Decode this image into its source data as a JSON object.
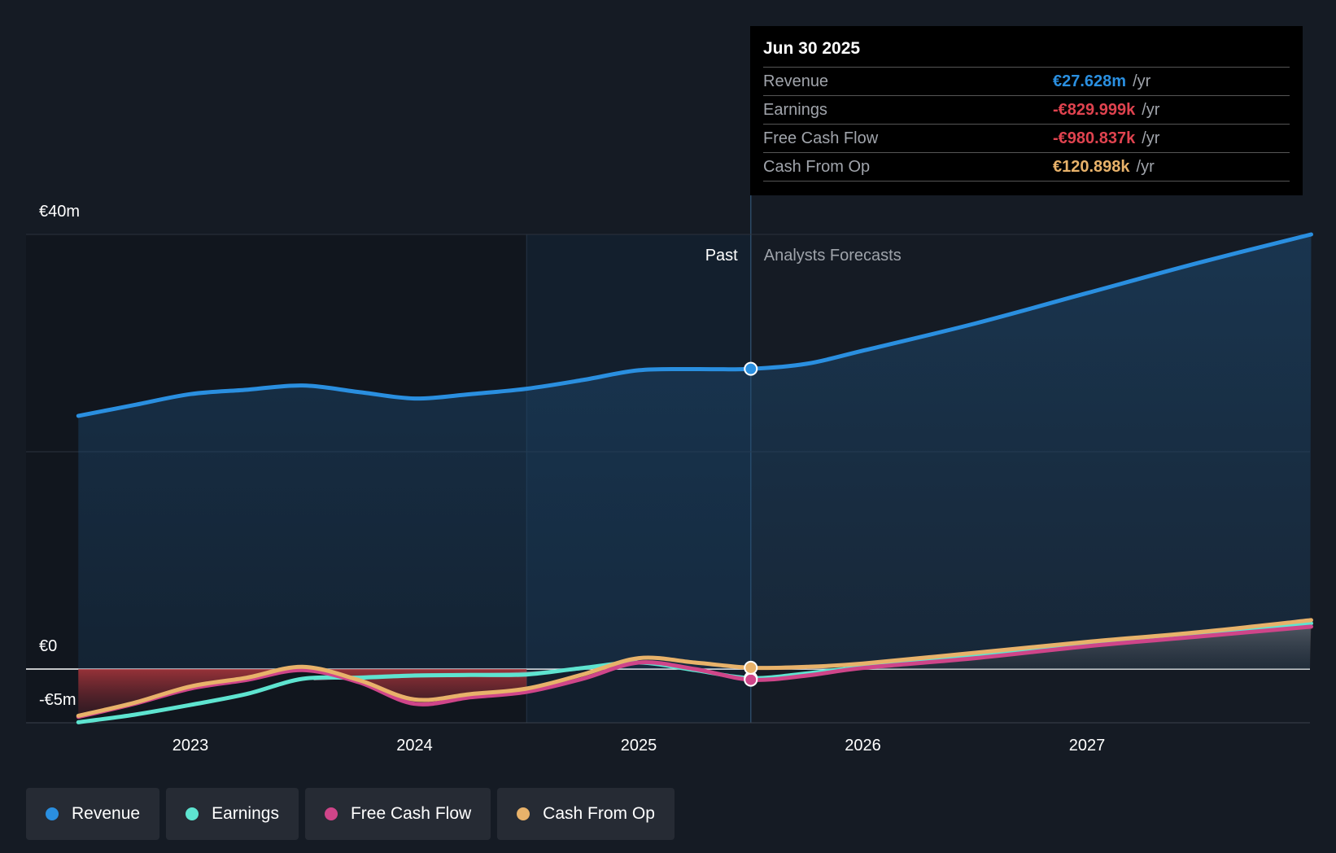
{
  "chart_data": {
    "type": "area",
    "y_unit": "€m",
    "ylim": [
      -5,
      40
    ],
    "xlim": [
      2022.5,
      2028.0
    ],
    "y_ticks": [
      {
        "value": 40,
        "label": "€40m"
      },
      {
        "value": 0,
        "label": "€0"
      },
      {
        "value": -5,
        "label": "-€5m"
      }
    ],
    "x_ticks": [
      {
        "value": 2023,
        "label": "2023"
      },
      {
        "value": 2024,
        "label": "2024"
      },
      {
        "value": 2025,
        "label": "2025"
      },
      {
        "value": 2026,
        "label": "2026"
      },
      {
        "value": 2027,
        "label": "2027"
      }
    ],
    "past_label": "Past",
    "forecast_label": "Analysts Forecasts",
    "highlight_start": 2024.5,
    "divider_x": 2025.5,
    "series": [
      {
        "name": "Revenue",
        "color": "#2a8fe0",
        "points": [
          [
            2022.5,
            23.3
          ],
          [
            2022.75,
            24.3
          ],
          [
            2023.0,
            25.3
          ],
          [
            2023.25,
            25.7
          ],
          [
            2023.5,
            26.1
          ],
          [
            2023.75,
            25.5
          ],
          [
            2024.0,
            24.9
          ],
          [
            2024.25,
            25.3
          ],
          [
            2024.5,
            25.8
          ],
          [
            2024.75,
            26.6
          ],
          [
            2025.0,
            27.5
          ],
          [
            2025.25,
            27.6
          ],
          [
            2025.5,
            27.628
          ],
          [
            2025.75,
            28.1
          ],
          [
            2026.0,
            29.3
          ],
          [
            2026.5,
            31.8
          ],
          [
            2027.0,
            34.6
          ],
          [
            2027.5,
            37.4
          ],
          [
            2028.0,
            40.0
          ]
        ]
      },
      {
        "name": "Earnings",
        "color": "#5ee4d0",
        "points": [
          [
            2022.5,
            -4.9
          ],
          [
            2022.75,
            -4.2
          ],
          [
            2023.0,
            -3.3
          ],
          [
            2023.25,
            -2.3
          ],
          [
            2023.5,
            -0.9
          ],
          [
            2023.75,
            -0.8
          ],
          [
            2024.0,
            -0.6
          ],
          [
            2024.25,
            -0.55
          ],
          [
            2024.5,
            -0.5
          ],
          [
            2024.75,
            0.1
          ],
          [
            2025.0,
            0.6
          ],
          [
            2025.25,
            -0.1
          ],
          [
            2025.5,
            -0.83
          ],
          [
            2025.75,
            -0.4
          ],
          [
            2026.0,
            0.2
          ],
          [
            2026.5,
            1.3
          ],
          [
            2027.0,
            2.4
          ],
          [
            2027.5,
            3.3
          ],
          [
            2028.0,
            4.2
          ]
        ]
      },
      {
        "name": "Free Cash Flow",
        "color": "#cf4589",
        "points": [
          [
            2022.5,
            -4.4
          ],
          [
            2022.75,
            -3.2
          ],
          [
            2023.0,
            -1.8
          ],
          [
            2023.25,
            -1.0
          ],
          [
            2023.5,
            -0.1
          ],
          [
            2023.75,
            -1.2
          ],
          [
            2024.0,
            -3.2
          ],
          [
            2024.25,
            -2.6
          ],
          [
            2024.5,
            -2.1
          ],
          [
            2024.75,
            -0.9
          ],
          [
            2025.0,
            0.6
          ],
          [
            2025.25,
            0.0
          ],
          [
            2025.5,
            -0.98
          ],
          [
            2025.75,
            -0.6
          ],
          [
            2026.0,
            0.1
          ],
          [
            2026.5,
            1.0
          ],
          [
            2027.0,
            2.1
          ],
          [
            2027.5,
            3.0
          ],
          [
            2028.0,
            3.9
          ]
        ]
      },
      {
        "name": "Cash From Op",
        "color": "#e8b26a",
        "points": [
          [
            2022.5,
            -4.3
          ],
          [
            2022.75,
            -3.1
          ],
          [
            2023.0,
            -1.6
          ],
          [
            2023.25,
            -0.8
          ],
          [
            2023.5,
            0.2
          ],
          [
            2023.75,
            -1.0
          ],
          [
            2024.0,
            -2.8
          ],
          [
            2024.25,
            -2.3
          ],
          [
            2024.5,
            -1.8
          ],
          [
            2024.75,
            -0.5
          ],
          [
            2025.0,
            1.0
          ],
          [
            2025.25,
            0.6
          ],
          [
            2025.5,
            0.121
          ],
          [
            2025.75,
            0.2
          ],
          [
            2026.0,
            0.5
          ],
          [
            2026.5,
            1.5
          ],
          [
            2027.0,
            2.5
          ],
          [
            2027.5,
            3.4
          ],
          [
            2028.0,
            4.5
          ]
        ]
      }
    ]
  },
  "tooltip": {
    "date": "Jun 30 2025",
    "rows": [
      {
        "name": "Revenue",
        "value": "€27.628m",
        "unit": "/yr",
        "color": "#2a8fe0"
      },
      {
        "name": "Earnings",
        "value": "-€829.999k",
        "unit": "/yr",
        "color": "#e0434f"
      },
      {
        "name": "Free Cash Flow",
        "value": "-€980.837k",
        "unit": "/yr",
        "color": "#e0434f"
      },
      {
        "name": "Cash From Op",
        "value": "€120.898k",
        "unit": "/yr",
        "color": "#e8b26a"
      }
    ]
  },
  "legend": [
    {
      "label": "Revenue",
      "color": "#2a8fe0"
    },
    {
      "label": "Earnings",
      "color": "#5ee4d0"
    },
    {
      "label": "Free Cash Flow",
      "color": "#cf4589"
    },
    {
      "label": "Cash From Op",
      "color": "#e8b26a"
    }
  ]
}
